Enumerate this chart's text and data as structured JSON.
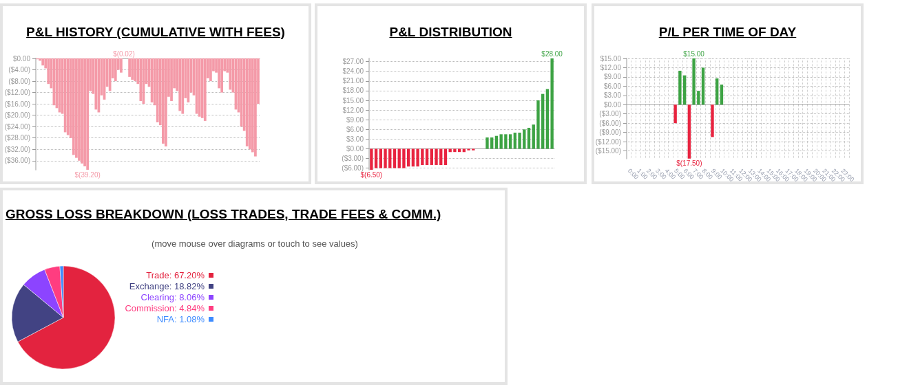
{
  "chart_data": [
    {
      "type": "bar",
      "title": "P&L HISTORY (CUMULATIVE WITH FEES)",
      "color": "#f49aa8",
      "grid": "y",
      "legend": false,
      "categories": [
        null,
        null,
        null,
        null,
        null,
        null,
        null,
        null,
        null,
        null,
        null,
        null,
        null,
        null,
        null,
        null,
        null,
        null,
        null,
        null,
        null,
        null,
        null,
        null,
        null,
        null,
        null,
        null,
        null,
        null,
        null,
        null,
        null,
        null,
        null,
        null,
        null,
        null,
        null,
        null,
        null,
        null,
        null,
        null,
        null,
        null,
        null,
        null,
        null,
        null,
        null,
        null,
        null,
        null,
        null,
        null,
        null,
        null,
        null,
        null,
        null,
        null,
        null,
        null,
        null,
        null,
        null,
        null,
        null,
        null,
        null,
        null,
        null,
        null,
        null,
        null,
        null,
        null,
        null,
        null
      ],
      "values": [
        -0.3,
        -0.8,
        -2.5,
        -3.5,
        -9,
        -10.5,
        -16.5,
        -17.5,
        -19,
        -19.5,
        -26,
        -27,
        -28,
        -34,
        -35,
        -36,
        -37,
        -38,
        -39.2,
        -11.5,
        -12.5,
        -18,
        -19,
        -13,
        -14.5,
        -10,
        -11.5,
        -7,
        -8,
        -4,
        -5,
        -0.02,
        -0.02,
        -6.5,
        -7.5,
        -8,
        -9,
        -15,
        -16,
        -9,
        -10,
        -15.5,
        -16.5,
        -22.5,
        -23.5,
        -30,
        -31,
        -13.5,
        -15,
        -10.5,
        -11.5,
        -18.5,
        -19.5,
        -14,
        -15.5,
        -12,
        -13,
        -19.5,
        -20.5,
        -21,
        -22,
        -7,
        -8,
        -4.5,
        -5,
        -10.5,
        -12,
        -4.5,
        -5,
        -11,
        -12,
        -18,
        -19,
        -24,
        -25.5,
        -31,
        -32,
        -33,
        -34.5,
        -16
      ],
      "value_labels": [
        null,
        null,
        null,
        null,
        null,
        null,
        null,
        null,
        null,
        null,
        null,
        null,
        null,
        null,
        null,
        null,
        null,
        null,
        "$(39.20)",
        null,
        null,
        null,
        null,
        null,
        null,
        null,
        null,
        null,
        null,
        null,
        null,
        "$(0.02)",
        null,
        null,
        null,
        null,
        null,
        null,
        null,
        null,
        null,
        null,
        null,
        null,
        null,
        null,
        null,
        null,
        null,
        null,
        null,
        null,
        null,
        null,
        null,
        null,
        null,
        null,
        null,
        null,
        null,
        null,
        null,
        null,
        null,
        null,
        null,
        null,
        null,
        null,
        null,
        null,
        null,
        null,
        null,
        null,
        null,
        null,
        null,
        null
      ],
      "ylim": [
        -39.2,
        0
      ],
      "yticks": [
        {
          "value": 0,
          "label": "$0.00"
        },
        {
          "value": -4,
          "label": "($4.00)"
        },
        {
          "value": -8,
          "label": "($8.00)"
        },
        {
          "value": -12,
          "label": "($12.00)"
        },
        {
          "value": -16,
          "label": "($16.00)"
        },
        {
          "value": -20,
          "label": "($20.00)"
        },
        {
          "value": -24,
          "label": "($24.00)"
        },
        {
          "value": -28,
          "label": "($28.00)"
        },
        {
          "value": -32,
          "label": "($32.00)"
        },
        {
          "value": -36,
          "label": "($36.00)"
        }
      ]
    },
    {
      "type": "bar",
      "title": "P&L DISTRIBUTION",
      "grid": "y",
      "legend": false,
      "categories": [
        null,
        null,
        null,
        null,
        null,
        null,
        null,
        null,
        null,
        null,
        null,
        null,
        null,
        null,
        null,
        null,
        null,
        null,
        null,
        null,
        null,
        null,
        null,
        null,
        null,
        null,
        null,
        null,
        null,
        null,
        null,
        null,
        null,
        null,
        null,
        null,
        null,
        null,
        null,
        null
      ],
      "values": [
        -6.5,
        -6,
        -6,
        -6,
        -6,
        -6,
        -6,
        -6,
        -5.5,
        -5.5,
        -5.5,
        -5,
        -5,
        -5,
        -5,
        -5,
        -5,
        -1,
        -1,
        -1,
        -1,
        -0.5,
        -0.5,
        0,
        0,
        3.5,
        3.5,
        4,
        4.5,
        4.5,
        4.5,
        5,
        5,
        6,
        6.5,
        7.5,
        15,
        17,
        18.5,
        28
      ],
      "colors": [
        "#e8233f",
        "#e8233f",
        "#e8233f",
        "#e8233f",
        "#e8233f",
        "#e8233f",
        "#e8233f",
        "#e8233f",
        "#e8233f",
        "#e8233f",
        "#e8233f",
        "#e8233f",
        "#e8233f",
        "#e8233f",
        "#e8233f",
        "#e8233f",
        "#e8233f",
        "#e8233f",
        "#e8233f",
        "#e8233f",
        "#e8233f",
        "#e8233f",
        "#e8233f",
        "#3da344",
        "#3da344",
        "#3da344",
        "#3da344",
        "#3da344",
        "#3da344",
        "#3da344",
        "#3da344",
        "#3da344",
        "#3da344",
        "#3da344",
        "#3da344",
        "#3da344",
        "#3da344",
        "#3da344",
        "#3da344",
        "#3da344"
      ],
      "value_labels": [
        "$(6.50)",
        null,
        null,
        null,
        null,
        null,
        null,
        null,
        null,
        null,
        null,
        null,
        null,
        null,
        null,
        null,
        null,
        null,
        null,
        null,
        null,
        null,
        null,
        null,
        null,
        null,
        null,
        null,
        null,
        null,
        null,
        null,
        null,
        null,
        null,
        null,
        null,
        null,
        null,
        "$28.00"
      ],
      "ylim": [
        -6.5,
        28
      ],
      "yticks": [
        {
          "value": -6,
          "label": "($6.00)"
        },
        {
          "value": -3,
          "label": "($3.00)"
        },
        {
          "value": 0,
          "label": "$0.00"
        },
        {
          "value": 3,
          "label": "$3.00"
        },
        {
          "value": 6,
          "label": "$6.00"
        },
        {
          "value": 9,
          "label": "$9.00"
        },
        {
          "value": 12,
          "label": "$12.00"
        },
        {
          "value": 15,
          "label": "$15.00"
        },
        {
          "value": 18,
          "label": "$18.00"
        },
        {
          "value": 21,
          "label": "$21.00"
        },
        {
          "value": 24,
          "label": "$24.00"
        },
        {
          "value": 27,
          "label": "$27.00"
        }
      ]
    },
    {
      "type": "bar",
      "title": "P/L PER TIME OF DAY",
      "grid": true,
      "legend": false,
      "categories": [
        "0:00",
        null,
        "1:00",
        null,
        "2:00",
        null,
        "3:00",
        null,
        "4:00",
        null,
        "5:00",
        null,
        "6:00",
        null,
        "7:00",
        null,
        "8:00",
        null,
        "9:00",
        null,
        "10:00",
        null,
        "11:00",
        null,
        "12:00",
        null,
        "13:00",
        null,
        "14:00",
        null,
        "15:00",
        null,
        "16:00",
        null,
        "17:00",
        null,
        "18:00",
        null,
        "19:00",
        null,
        "20:00",
        null,
        "21:00",
        null,
        "22:00",
        null,
        "23:00",
        null
      ],
      "values": [
        null,
        null,
        null,
        null,
        null,
        null,
        null,
        null,
        null,
        null,
        -6,
        11,
        9.5,
        -17.5,
        15,
        4.5,
        12,
        null,
        -10.5,
        8.5,
        6.5,
        null,
        null,
        null,
        null,
        null,
        null,
        null,
        null,
        null,
        null,
        null,
        null,
        null,
        null,
        null,
        null,
        null,
        null,
        null,
        null,
        null,
        null,
        null,
        null,
        null,
        null,
        null
      ],
      "colors": [
        null,
        null,
        null,
        null,
        null,
        null,
        null,
        null,
        null,
        null,
        "#e8233f",
        "#3da344",
        "#3da344",
        "#e8233f",
        "#3da344",
        "#3da344",
        "#3da344",
        null,
        "#e8233f",
        "#3da344",
        "#3da344",
        null,
        null,
        null,
        null,
        null,
        null,
        null,
        null,
        null,
        null,
        null,
        null,
        null,
        null,
        null,
        null,
        null,
        null,
        null,
        null,
        null,
        null,
        null,
        null,
        null,
        null,
        null
      ],
      "value_labels": [
        null,
        null,
        null,
        null,
        null,
        null,
        null,
        null,
        null,
        null,
        null,
        null,
        null,
        "$(17.50)",
        "$15.00",
        null,
        null,
        null,
        null,
        null,
        null,
        null,
        null,
        null,
        null,
        null,
        null,
        null,
        null,
        null,
        null,
        null,
        null,
        null,
        null,
        null,
        null,
        null,
        null,
        null,
        null,
        null,
        null,
        null,
        null,
        null,
        null,
        null
      ],
      "ylim": [
        -17.5,
        15
      ],
      "yticks": [
        {
          "value": -15,
          "label": "($15.00)"
        },
        {
          "value": -12,
          "label": "($12.00)"
        },
        {
          "value": -9,
          "label": "($9.00)"
        },
        {
          "value": -6,
          "label": "($6.00)"
        },
        {
          "value": -3,
          "label": "($3.00)"
        },
        {
          "value": 0,
          "label": "$0.00"
        },
        {
          "value": 3,
          "label": "$3.00"
        },
        {
          "value": 6,
          "label": "$6.00"
        },
        {
          "value": 9,
          "label": "$9.00"
        },
        {
          "value": 12,
          "label": "$12.00"
        },
        {
          "value": 15,
          "label": "$15.00"
        }
      ]
    },
    {
      "type": "pie",
      "title": "GROSS LOSS BREAKDOWN (LOSS TRADES, TRADE FEES & COMM.)",
      "subtitle": "(move mouse over diagrams or touch to see values)",
      "legend": "right",
      "categories": [
        "Trade",
        "Exchange",
        "Clearing",
        "Commission",
        "NFA"
      ],
      "values": [
        67.2,
        18.82,
        8.06,
        4.84,
        1.08
      ],
      "value_labels": [
        "67.20%",
        "18.82%",
        "8.06%",
        "4.84%",
        "1.08%"
      ],
      "colors": [
        "#e3233f",
        "#424383",
        "#8c44ff",
        "#ff3d80",
        "#3d8bff"
      ]
    }
  ]
}
